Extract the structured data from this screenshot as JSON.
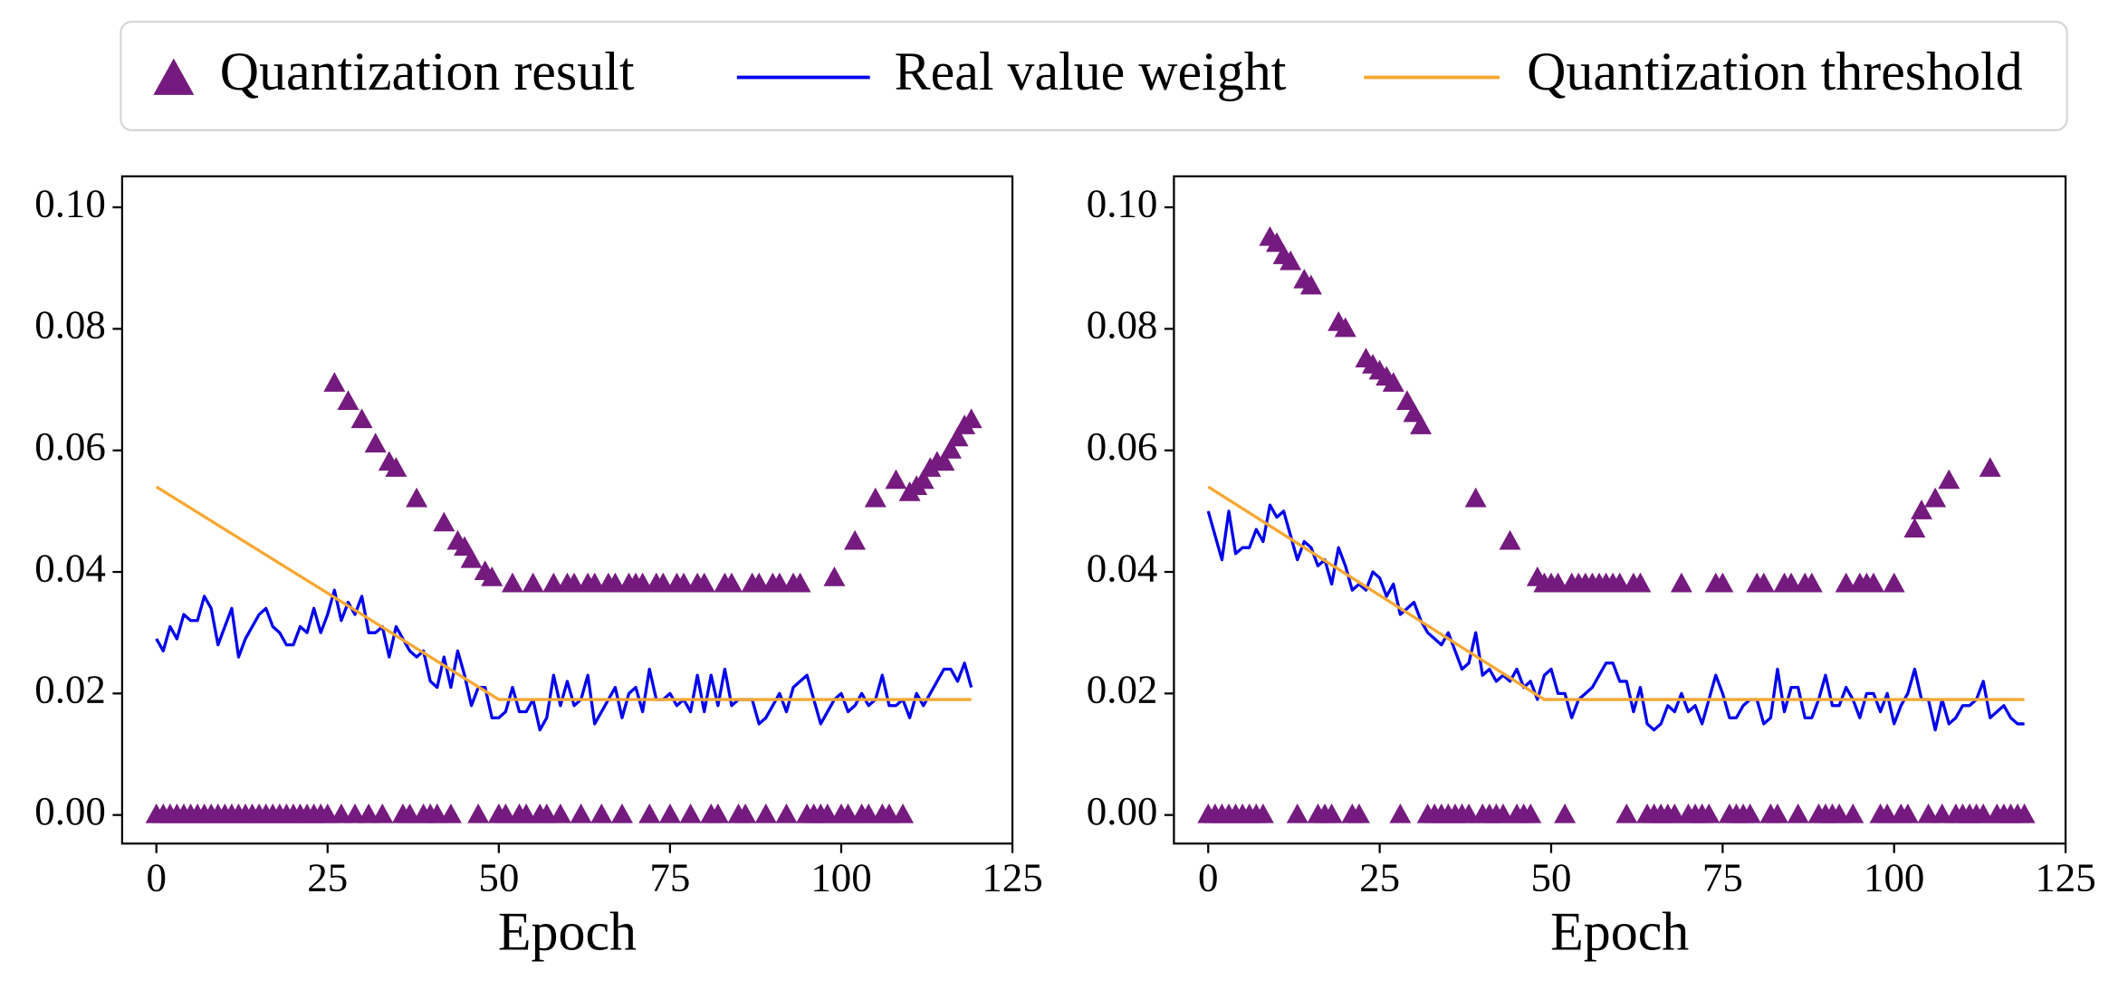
{
  "chart_data": [
    {
      "type": "line",
      "xlabel": "Epoch",
      "x": [
        0,
        1,
        2,
        3,
        4,
        5,
        6,
        7,
        8,
        9,
        10,
        11,
        12,
        13,
        14,
        15,
        16,
        17,
        18,
        19,
        20,
        21,
        22,
        23,
        24,
        25,
        26,
        27,
        28,
        29,
        30,
        31,
        32,
        33,
        34,
        35,
        36,
        37,
        38,
        39,
        40,
        41,
        42,
        43,
        44,
        45,
        46,
        47,
        48,
        49,
        50,
        51,
        52,
        53,
        54,
        55,
        56,
        57,
        58,
        59,
        60,
        61,
        62,
        63,
        64,
        65,
        66,
        67,
        68,
        69,
        70,
        71,
        72,
        73,
        74,
        75,
        76,
        77,
        78,
        79,
        80,
        81,
        82,
        83,
        84,
        85,
        86,
        87,
        88,
        89,
        90,
        91,
        92,
        93,
        94,
        95,
        96,
        97,
        98,
        99,
        100,
        101,
        102,
        103,
        104,
        105,
        106,
        107,
        108,
        109,
        110,
        111,
        112,
        113,
        114,
        115,
        116,
        117,
        118,
        119
      ],
      "xlim": [
        -5,
        125
      ],
      "xticks": [
        0,
        25,
        50,
        75,
        100,
        125
      ],
      "ylim": [
        -0.0047,
        0.1051
      ],
      "yticks": [
        {
          "value": 0,
          "label": "0.00"
        },
        {
          "value": 0.02,
          "label": "0.02"
        },
        {
          "value": 0.04,
          "label": "0.04"
        },
        {
          "value": 0.06,
          "label": "0.06"
        },
        {
          "value": 0.08,
          "label": "0.08"
        },
        {
          "value": 0.1,
          "label": "0.10"
        }
      ],
      "series": [
        {
          "name": "Quantization result",
          "type": "scatter",
          "marker": "triangle",
          "color": "#751a7f",
          "values": [
            0,
            0,
            0,
            0,
            0,
            0,
            0,
            0,
            0,
            0,
            0,
            0,
            0,
            0,
            0,
            0,
            0,
            0,
            0,
            0,
            0,
            0,
            0,
            0,
            0,
            0,
            0.071,
            0,
            0.068,
            0,
            0.065,
            0,
            0.061,
            0,
            0.058,
            0.057,
            0,
            0,
            0.052,
            0,
            0,
            0,
            0.048,
            0,
            0.045,
            0.044,
            0.042,
            0,
            0.04,
            0.039,
            0,
            0,
            0.038,
            0,
            0,
            0.038,
            0,
            0,
            0.038,
            0,
            0.038,
            0.038,
            0,
            0.038,
            0.038,
            0,
            0.038,
            0.038,
            0,
            0.038,
            0.038,
            0.038,
            0,
            0.038,
            0.038,
            0,
            0.038,
            0.038,
            0,
            0.038,
            0.038,
            0,
            0,
            0.038,
            0.038,
            0,
            0,
            0.038,
            0.038,
            0,
            0.038,
            0.038,
            0,
            0.038,
            0.038,
            0,
            0,
            0,
            0,
            0.039,
            0,
            0,
            0.045,
            0,
            0,
            0.052,
            0,
            0,
            0.055,
            0,
            0.053,
            0.054,
            0.055,
            0.057,
            0.058,
            0.058,
            0.06,
            0.062,
            0.064,
            0.065
          ]
        },
        {
          "name": "Real value weight",
          "type": "line",
          "color": "#0000ee",
          "values": [
            0.029,
            0.027,
            0.031,
            0.029,
            0.033,
            0.032,
            0.032,
            0.036,
            0.034,
            0.028,
            0.031,
            0.034,
            0.026,
            0.029,
            0.031,
            0.033,
            0.034,
            0.031,
            0.03,
            0.028,
            0.028,
            0.031,
            0.03,
            0.034,
            0.03,
            0.033,
            0.037,
            0.032,
            0.035,
            0.033,
            0.036,
            0.03,
            0.03,
            0.031,
            0.026,
            0.031,
            0.029,
            0.027,
            0.026,
            0.027,
            0.022,
            0.021,
            0.026,
            0.021,
            0.027,
            0.023,
            0.018,
            0.021,
            0.021,
            0.016,
            0.016,
            0.017,
            0.021,
            0.017,
            0.017,
            0.019,
            0.014,
            0.016,
            0.023,
            0.018,
            0.022,
            0.018,
            0.019,
            0.023,
            0.015,
            0.017,
            0.019,
            0.021,
            0.016,
            0.02,
            0.021,
            0.017,
            0.024,
            0.019,
            0.019,
            0.02,
            0.018,
            0.019,
            0.017,
            0.023,
            0.017,
            0.023,
            0.018,
            0.024,
            0.018,
            0.019,
            0.019,
            0.019,
            0.015,
            0.016,
            0.018,
            0.02,
            0.017,
            0.021,
            0.022,
            0.023,
            0.019,
            0.015,
            0.017,
            0.019,
            0.02,
            0.017,
            0.018,
            0.02,
            0.018,
            0.019,
            0.023,
            0.018,
            0.018,
            0.019,
            0.016,
            0.02,
            0.018,
            0.02,
            0.022,
            0.024,
            0.024,
            0.022,
            0.025,
            0.021
          ]
        },
        {
          "name": "Quantization threshold",
          "type": "line",
          "color": "#f5a833",
          "x": [
            0,
            50,
            119
          ],
          "values": [
            0.054,
            0.019,
            0.019
          ]
        }
      ]
    },
    {
      "type": "line",
      "xlabel": "Epoch",
      "x": [
        0,
        1,
        2,
        3,
        4,
        5,
        6,
        7,
        8,
        9,
        10,
        11,
        12,
        13,
        14,
        15,
        16,
        17,
        18,
        19,
        20,
        21,
        22,
        23,
        24,
        25,
        26,
        27,
        28,
        29,
        30,
        31,
        32,
        33,
        34,
        35,
        36,
        37,
        38,
        39,
        40,
        41,
        42,
        43,
        44,
        45,
        46,
        47,
        48,
        49,
        50,
        51,
        52,
        53,
        54,
        55,
        56,
        57,
        58,
        59,
        60,
        61,
        62,
        63,
        64,
        65,
        66,
        67,
        68,
        69,
        70,
        71,
        72,
        73,
        74,
        75,
        76,
        77,
        78,
        79,
        80,
        81,
        82,
        83,
        84,
        85,
        86,
        87,
        88,
        89,
        90,
        91,
        92,
        93,
        94,
        95,
        96,
        97,
        98,
        99,
        100,
        101,
        102,
        103,
        104,
        105,
        106,
        107,
        108,
        109,
        110,
        111,
        112,
        113,
        114,
        115,
        116,
        117,
        118,
        119
      ],
      "xlim": [
        -5,
        125
      ],
      "xticks": [
        0,
        25,
        50,
        75,
        100,
        125
      ],
      "ylim": [
        -0.0047,
        0.1051
      ],
      "yticks": [
        {
          "value": 0,
          "label": "0.00"
        },
        {
          "value": 0.02,
          "label": "0.02"
        },
        {
          "value": 0.04,
          "label": "0.04"
        },
        {
          "value": 0.06,
          "label": "0.06"
        },
        {
          "value": 0.08,
          "label": "0.08"
        },
        {
          "value": 0.1,
          "label": "0.10"
        }
      ],
      "series": [
        {
          "type": "scatter",
          "marker": "triangle",
          "color": "#751a7f",
          "values": [
            0,
            0,
            0,
            0,
            0,
            0,
            0,
            0,
            0,
            0.095,
            0.094,
            0.092,
            0.091,
            0,
            0.088,
            0.087,
            0,
            0,
            0,
            0.081,
            0.08,
            0,
            0,
            0.075,
            0.074,
            0.073,
            0.072,
            0.071,
            0,
            0.068,
            0.066,
            0.064,
            0,
            0,
            0,
            0,
            0,
            0,
            0,
            0.052,
            0,
            0,
            0,
            0,
            0.045,
            0,
            0,
            0,
            0.039,
            0.038,
            0.038,
            0.038,
            0,
            0.038,
            0.038,
            0.038,
            0.038,
            0.038,
            0.038,
            0.038,
            0.038,
            0,
            0.038,
            0.038,
            0,
            0,
            0,
            0,
            0,
            0.038,
            0,
            0,
            0,
            0,
            0.038,
            0.038,
            0,
            0,
            0,
            0,
            0.038,
            0.038,
            0,
            0,
            0.038,
            0.038,
            0,
            0.038,
            0.038,
            0,
            0,
            0,
            0,
            0.038,
            0,
            0.038,
            0.038,
            0.038,
            0,
            0,
            0.038,
            0,
            0,
            0.047,
            0.05,
            0,
            0.052,
            0,
            0.055,
            0,
            0,
            0,
            0,
            0,
            0.057,
            0,
            0,
            0,
            0,
            0
          ]
        },
        {
          "type": "line",
          "color": "#0000ee",
          "values": [
            0.05,
            0.046,
            0.042,
            0.05,
            0.043,
            0.044,
            0.044,
            0.047,
            0.045,
            0.051,
            0.049,
            0.05,
            0.046,
            0.042,
            0.045,
            0.044,
            0.041,
            0.042,
            0.038,
            0.044,
            0.041,
            0.037,
            0.038,
            0.037,
            0.04,
            0.039,
            0.036,
            0.038,
            0.033,
            0.034,
            0.035,
            0.032,
            0.03,
            0.029,
            0.028,
            0.03,
            0.027,
            0.024,
            0.025,
            0.03,
            0.023,
            0.024,
            0.022,
            0.023,
            0.022,
            0.024,
            0.021,
            0.022,
            0.019,
            0.023,
            0.024,
            0.02,
            0.02,
            0.016,
            0.019,
            0.02,
            0.021,
            0.023,
            0.025,
            0.025,
            0.022,
            0.022,
            0.017,
            0.021,
            0.015,
            0.014,
            0.015,
            0.018,
            0.017,
            0.02,
            0.017,
            0.018,
            0.015,
            0.019,
            0.023,
            0.02,
            0.016,
            0.016,
            0.018,
            0.019,
            0.019,
            0.015,
            0.016,
            0.024,
            0.017,
            0.021,
            0.021,
            0.016,
            0.016,
            0.019,
            0.023,
            0.018,
            0.018,
            0.021,
            0.019,
            0.016,
            0.02,
            0.02,
            0.017,
            0.02,
            0.015,
            0.018,
            0.02,
            0.024,
            0.019,
            0.019,
            0.014,
            0.019,
            0.015,
            0.016,
            0.018,
            0.018,
            0.019,
            0.022,
            0.016,
            0.017,
            0.018,
            0.016,
            0.015,
            0.015
          ]
        },
        {
          "type": "line",
          "color": "#f5a833",
          "x": [
            0,
            49,
            119
          ],
          "values": [
            0.054,
            0.019,
            0.019
          ]
        }
      ]
    }
  ]
}
